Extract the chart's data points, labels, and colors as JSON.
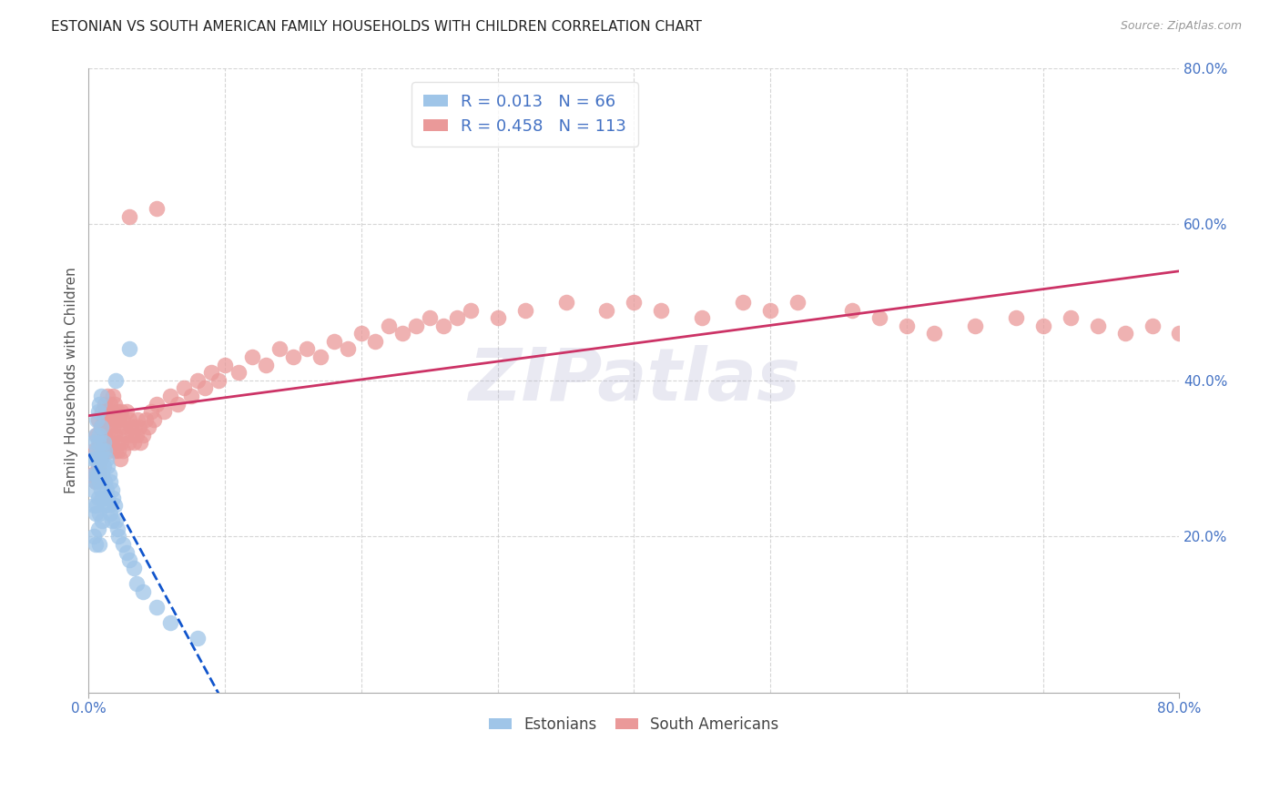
{
  "title": "ESTONIAN VS SOUTH AMERICAN FAMILY HOUSEHOLDS WITH CHILDREN CORRELATION CHART",
  "source": "Source: ZipAtlas.com",
  "ylabel": "Family Households with Children",
  "x_min": 0.0,
  "x_max": 0.8,
  "y_min": 0.0,
  "y_max": 0.8,
  "x_tick_positions": [
    0.0,
    0.8
  ],
  "x_tick_labels": [
    "0.0%",
    "80.0%"
  ],
  "y_ticks": [
    0.2,
    0.4,
    0.6,
    0.8
  ],
  "y_tick_labels": [
    "20.0%",
    "40.0%",
    "60.0%",
    "80.0%"
  ],
  "estonian_R": 0.013,
  "estonian_N": 66,
  "south_american_R": 0.458,
  "south_american_N": 113,
  "legend_label_1": "Estonians",
  "legend_label_2": "South Americans",
  "estonian_color": "#9fc5e8",
  "south_american_color": "#ea9999",
  "estonian_line_color": "#1155cc",
  "south_american_line_color": "#cc3366",
  "background_color": "#ffffff",
  "grid_color": "#cccccc",
  "tick_label_color": "#4472c4",
  "watermark": "ZIPatlas",
  "title_color": "#222222",
  "source_color": "#999999",
  "estonian_x": [
    0.003,
    0.003,
    0.004,
    0.004,
    0.004,
    0.004,
    0.005,
    0.005,
    0.005,
    0.005,
    0.005,
    0.006,
    0.006,
    0.006,
    0.006,
    0.007,
    0.007,
    0.007,
    0.007,
    0.007,
    0.008,
    0.008,
    0.008,
    0.008,
    0.008,
    0.008,
    0.009,
    0.009,
    0.009,
    0.009,
    0.01,
    0.01,
    0.01,
    0.01,
    0.011,
    0.011,
    0.011,
    0.012,
    0.012,
    0.012,
    0.013,
    0.013,
    0.014,
    0.014,
    0.015,
    0.015,
    0.016,
    0.016,
    0.017,
    0.017,
    0.018,
    0.019,
    0.02,
    0.021,
    0.022,
    0.025,
    0.028,
    0.03,
    0.033,
    0.035,
    0.04,
    0.05,
    0.06,
    0.08,
    0.03,
    0.02
  ],
  "estonian_y": [
    0.3,
    0.26,
    0.32,
    0.28,
    0.24,
    0.2,
    0.33,
    0.3,
    0.27,
    0.23,
    0.19,
    0.35,
    0.31,
    0.28,
    0.24,
    0.36,
    0.32,
    0.28,
    0.25,
    0.21,
    0.37,
    0.33,
    0.3,
    0.27,
    0.23,
    0.19,
    0.38,
    0.34,
    0.3,
    0.26,
    0.31,
    0.28,
    0.25,
    0.22,
    0.32,
    0.29,
    0.25,
    0.31,
    0.27,
    0.24,
    0.3,
    0.26,
    0.29,
    0.25,
    0.28,
    0.24,
    0.27,
    0.23,
    0.26,
    0.22,
    0.25,
    0.24,
    0.22,
    0.21,
    0.2,
    0.19,
    0.18,
    0.17,
    0.16,
    0.14,
    0.13,
    0.11,
    0.09,
    0.07,
    0.44,
    0.4
  ],
  "south_american_x": [
    0.003,
    0.004,
    0.005,
    0.006,
    0.007,
    0.007,
    0.008,
    0.008,
    0.009,
    0.009,
    0.01,
    0.01,
    0.011,
    0.011,
    0.012,
    0.012,
    0.013,
    0.013,
    0.014,
    0.014,
    0.015,
    0.015,
    0.016,
    0.016,
    0.017,
    0.017,
    0.018,
    0.018,
    0.019,
    0.019,
    0.02,
    0.02,
    0.021,
    0.021,
    0.022,
    0.022,
    0.023,
    0.023,
    0.024,
    0.024,
    0.025,
    0.025,
    0.026,
    0.027,
    0.028,
    0.029,
    0.03,
    0.031,
    0.032,
    0.033,
    0.034,
    0.035,
    0.036,
    0.037,
    0.038,
    0.04,
    0.042,
    0.044,
    0.046,
    0.048,
    0.05,
    0.055,
    0.06,
    0.065,
    0.07,
    0.075,
    0.08,
    0.085,
    0.09,
    0.095,
    0.1,
    0.11,
    0.12,
    0.13,
    0.14,
    0.15,
    0.16,
    0.17,
    0.18,
    0.19,
    0.2,
    0.21,
    0.22,
    0.23,
    0.24,
    0.25,
    0.26,
    0.27,
    0.28,
    0.3,
    0.32,
    0.35,
    0.38,
    0.4,
    0.42,
    0.45,
    0.48,
    0.5,
    0.52,
    0.56,
    0.58,
    0.6,
    0.62,
    0.65,
    0.68,
    0.7,
    0.72,
    0.74,
    0.76,
    0.78,
    0.8,
    0.05,
    0.03
  ],
  "south_american_y": [
    0.28,
    0.31,
    0.27,
    0.33,
    0.29,
    0.35,
    0.32,
    0.28,
    0.34,
    0.3,
    0.36,
    0.32,
    0.35,
    0.31,
    0.37,
    0.33,
    0.36,
    0.32,
    0.38,
    0.34,
    0.35,
    0.31,
    0.37,
    0.33,
    0.36,
    0.32,
    0.38,
    0.34,
    0.37,
    0.33,
    0.35,
    0.31,
    0.36,
    0.32,
    0.35,
    0.31,
    0.34,
    0.3,
    0.36,
    0.32,
    0.35,
    0.31,
    0.34,
    0.33,
    0.36,
    0.32,
    0.35,
    0.34,
    0.33,
    0.32,
    0.34,
    0.33,
    0.35,
    0.34,
    0.32,
    0.33,
    0.35,
    0.34,
    0.36,
    0.35,
    0.37,
    0.36,
    0.38,
    0.37,
    0.39,
    0.38,
    0.4,
    0.39,
    0.41,
    0.4,
    0.42,
    0.41,
    0.43,
    0.42,
    0.44,
    0.43,
    0.44,
    0.43,
    0.45,
    0.44,
    0.46,
    0.45,
    0.47,
    0.46,
    0.47,
    0.48,
    0.47,
    0.48,
    0.49,
    0.48,
    0.49,
    0.5,
    0.49,
    0.5,
    0.49,
    0.48,
    0.5,
    0.49,
    0.5,
    0.49,
    0.48,
    0.47,
    0.46,
    0.47,
    0.48,
    0.47,
    0.48,
    0.47,
    0.46,
    0.47,
    0.46,
    0.62,
    0.61
  ]
}
